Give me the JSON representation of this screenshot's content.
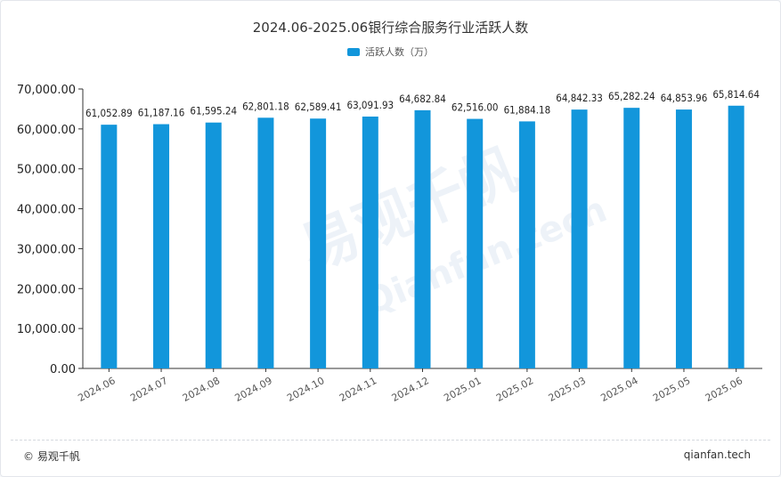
{
  "chart_data": {
    "type": "bar",
    "title": "2024.06-2025.06银行综合服务行业活跃人数",
    "categories": [
      "2024.06",
      "2024.07",
      "2024.08",
      "2024.09",
      "2024.10",
      "2024.11",
      "2024.12",
      "2025.01",
      "2025.02",
      "2025.03",
      "2025.04",
      "2025.05",
      "2025.06"
    ],
    "series": [
      {
        "name": "活跃人数（万）",
        "values": [
          61052.89,
          61187.16,
          61595.24,
          62801.18,
          62589.41,
          63091.93,
          64682.84,
          62516.0,
          61884.18,
          64842.33,
          65282.24,
          64853.96,
          65814.64
        ]
      }
    ],
    "data_labels": [
      "61,052.89",
      "61,187.16",
      "61,595.24",
      "62,801.18",
      "62,589.41",
      "63,091.93",
      "64,682.84",
      "62,516.00",
      "61,884.18",
      "64,842.33",
      "65,282.24",
      "64,853.96",
      "65,814.64"
    ],
    "y_ticks": [
      "0.00",
      "10,000.00",
      "20,000.00",
      "30,000.00",
      "40,000.00",
      "50,000.00",
      "60,000.00",
      "70,000.00"
    ],
    "ylim": [
      0,
      70000
    ],
    "legend_position": "top-center",
    "grid": false,
    "bar_color": "#1296db"
  },
  "watermark": {
    "text": "易观千帆",
    "sub": "Qianfan.tech"
  },
  "footer": {
    "left": "© 易观千帆",
    "right": "qianfan.tech"
  }
}
